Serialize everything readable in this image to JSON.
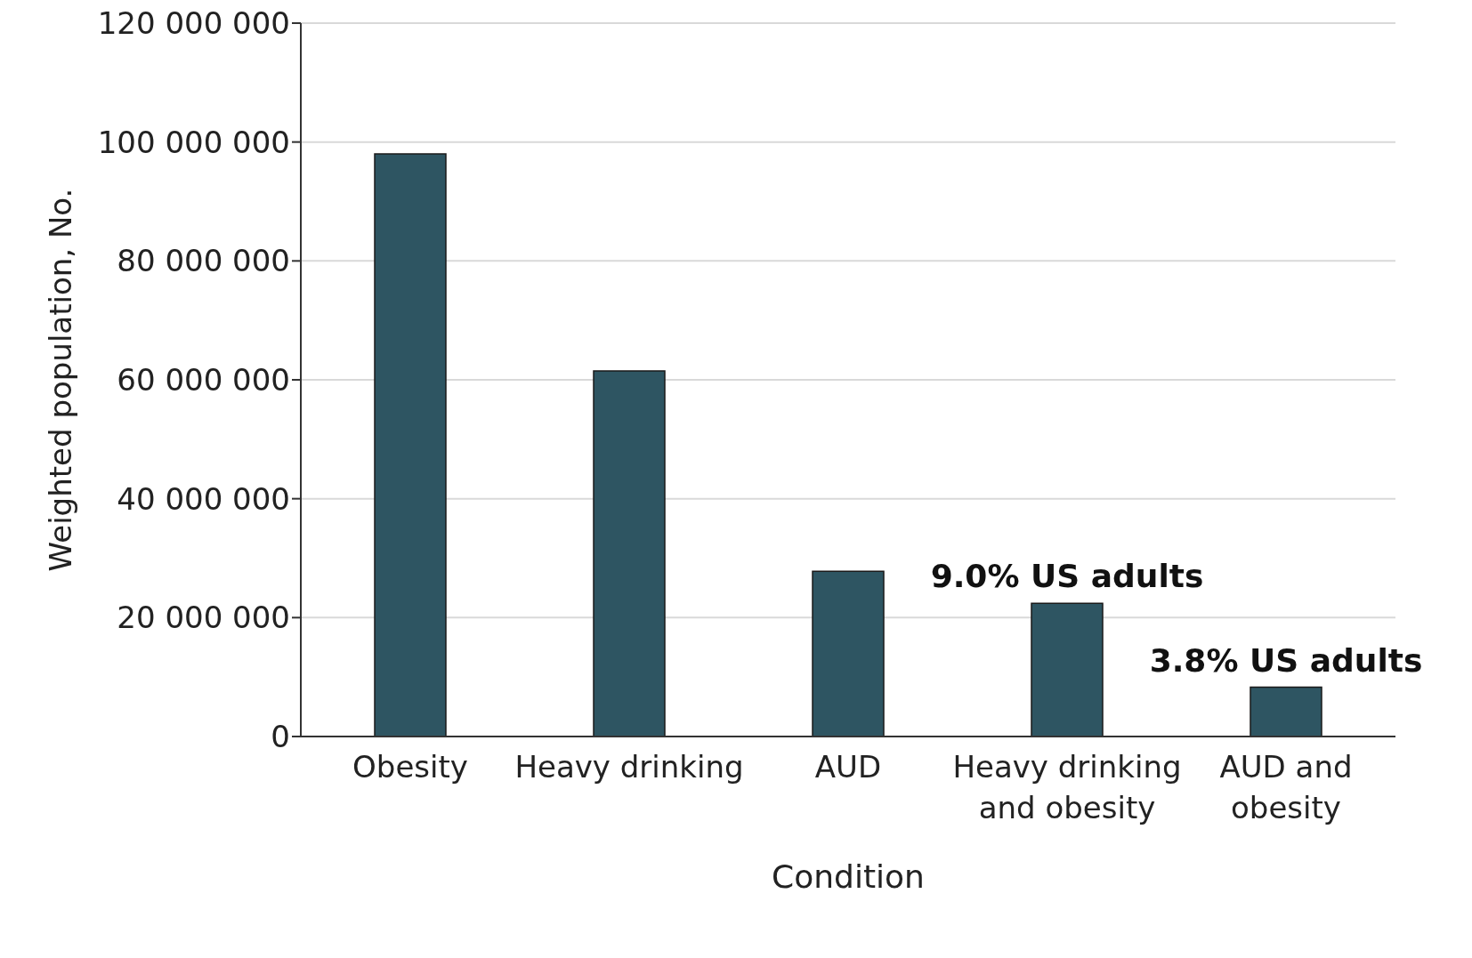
{
  "chart_data": {
    "type": "bar",
    "xlabel": "Condition",
    "ylabel": "Weighted population, No.",
    "categories": [
      "Obesity",
      "Heavy drinking",
      "AUD",
      "Heavy drinking and obesity",
      "AUD and obesity"
    ],
    "values": [
      98000000,
      61500000,
      27800000,
      22400000,
      8300000
    ],
    "color": "#2e5562",
    "ylim": [
      0,
      120000000
    ],
    "yticks": [
      {
        "value": 0,
        "label": "0"
      },
      {
        "value": 20000000,
        "label": "20 000 000"
      },
      {
        "value": 40000000,
        "label": "40 000 000"
      },
      {
        "value": 60000000,
        "label": "60 000 000"
      },
      {
        "value": 80000000,
        "label": "80 000 000"
      },
      {
        "value": 100000000,
        "label": "100 000 000"
      },
      {
        "value": 120000000,
        "label": "120 000 000"
      }
    ],
    "grid": "y",
    "annotations": [
      {
        "text": "9.0% US adults",
        "x": "Heavy drinking and obesity",
        "y": 22400000
      },
      {
        "text": "3.8% US adults",
        "x": "AUD and obesity",
        "y": 8300000
      }
    ]
  }
}
